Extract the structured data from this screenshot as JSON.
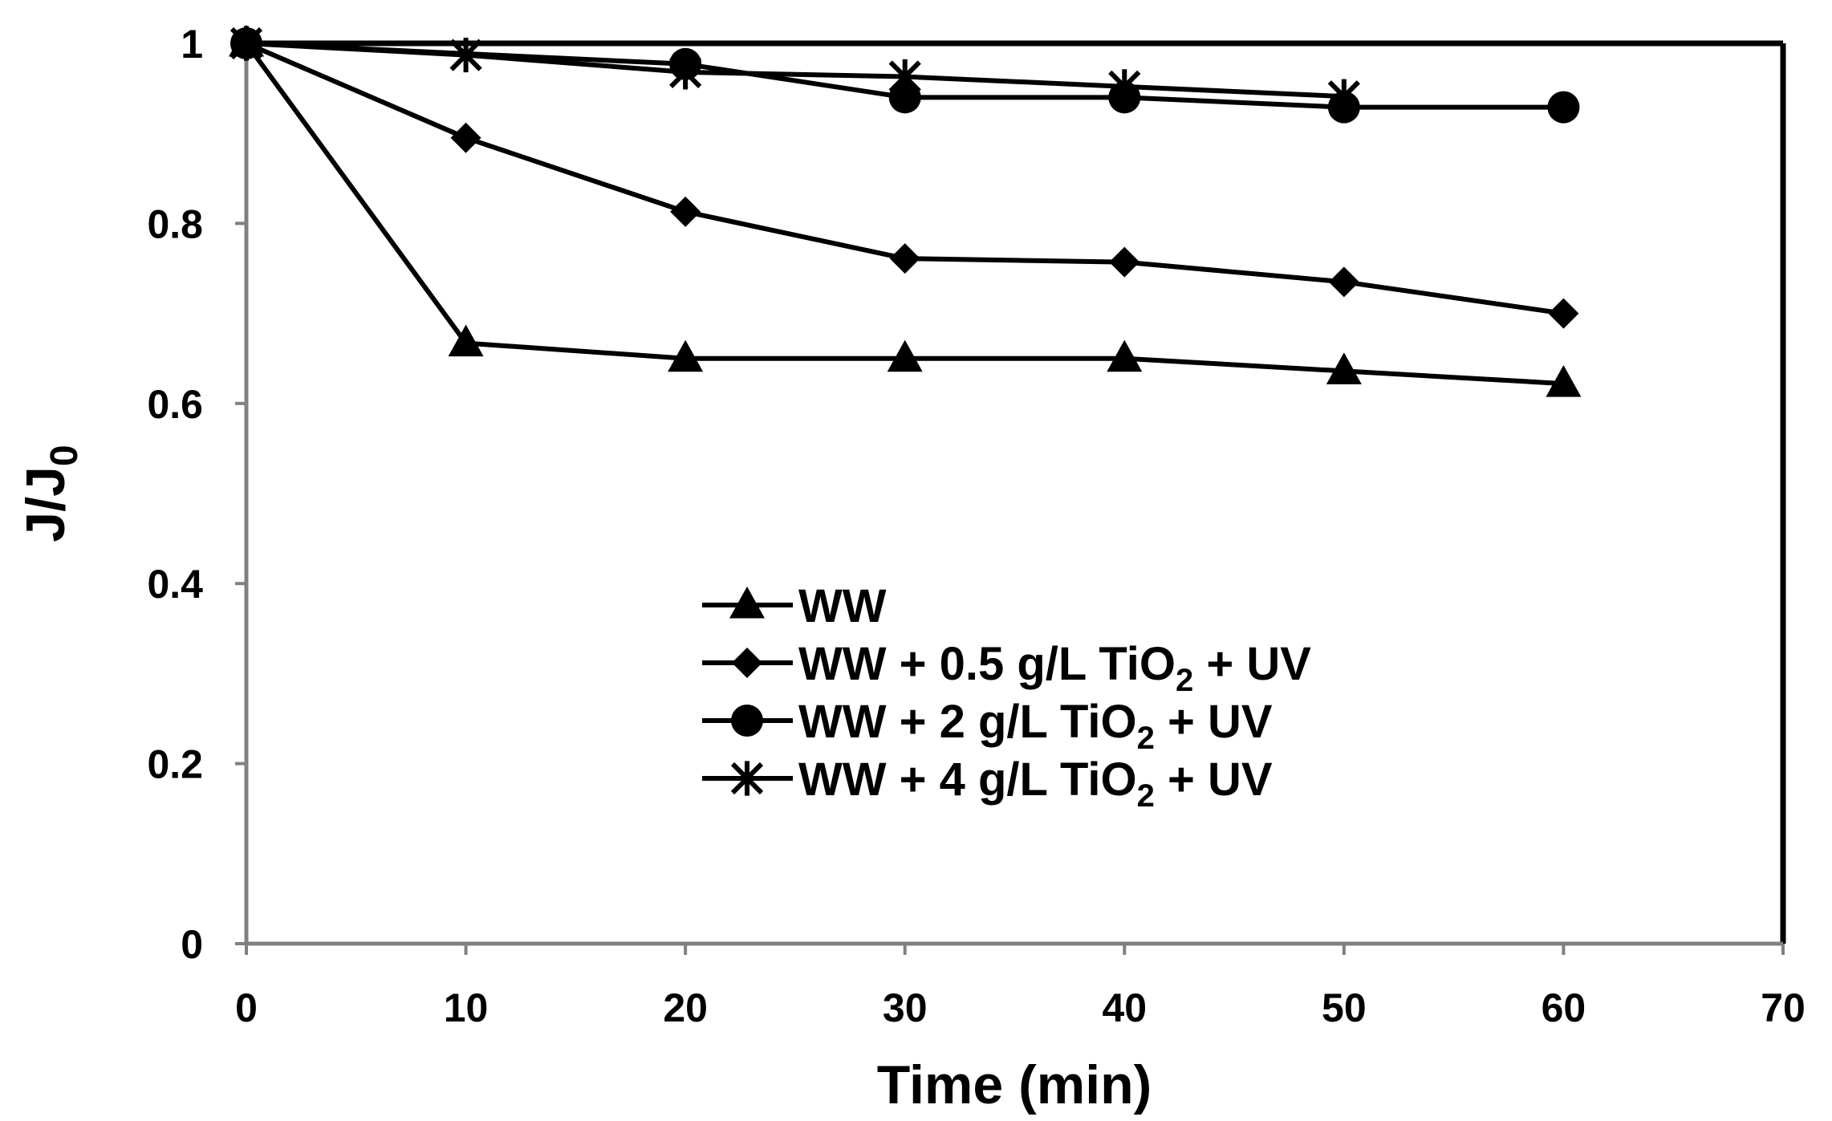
{
  "chart_data": {
    "type": "line",
    "title": "",
    "xlabel": "Time (min)",
    "ylabel": {
      "main": "J/J",
      "sub": "0"
    },
    "xlim": [
      0,
      70
    ],
    "ylim": [
      0,
      1
    ],
    "x_ticks": [
      0,
      10,
      20,
      30,
      40,
      50,
      60,
      70
    ],
    "x_tick_labels": [
      "0",
      "10",
      "20",
      "30",
      "40",
      "50",
      "60",
      "70"
    ],
    "y_ticks": [
      0,
      0.2,
      0.4,
      0.6,
      0.8,
      1
    ],
    "y_tick_labels": [
      "0",
      "0.2",
      "0.4",
      "0.6",
      "0.8",
      "1"
    ],
    "grid": false,
    "legend_position": "center",
    "series": [
      {
        "name": "WW",
        "label": {
          "pre": "WW",
          "sub": "",
          "post": ""
        },
        "marker": "triangle",
        "x": [
          0,
          10,
          20,
          30,
          40,
          50,
          60
        ],
        "values": [
          1.0,
          0.667,
          0.65,
          0.65,
          0.65,
          0.636,
          0.622
        ]
      },
      {
        "name": "WW + 0.5 g/L TiO2 + UV",
        "label": {
          "pre": "WW + 0.5 g/L TiO",
          "sub": "2",
          "post": " + UV"
        },
        "marker": "diamond",
        "x": [
          0,
          10,
          20,
          30,
          40,
          50,
          60
        ],
        "values": [
          1.0,
          0.895,
          0.813,
          0.761,
          0.757,
          0.735,
          0.7
        ]
      },
      {
        "name": "WW + 2 g/L TiO2 + UV",
        "label": {
          "pre": "WW + 2 g/L TiO",
          "sub": "2",
          "post": " + UV"
        },
        "marker": "circle",
        "x": [
          0,
          20,
          30,
          40,
          50,
          60
        ],
        "values": [
          1.0,
          0.977,
          0.94,
          0.94,
          0.929,
          0.929
        ]
      },
      {
        "name": "WW + 4 g/L TiO2 + UV",
        "label": {
          "pre": "WW + 4 g/L TiO",
          "sub": "2",
          "post": " + UV"
        },
        "marker": "asterisk",
        "x": [
          0,
          10,
          20,
          30,
          40,
          50
        ],
        "values": [
          1.0,
          0.987,
          0.968,
          0.963,
          0.952,
          0.941
        ]
      }
    ]
  }
}
